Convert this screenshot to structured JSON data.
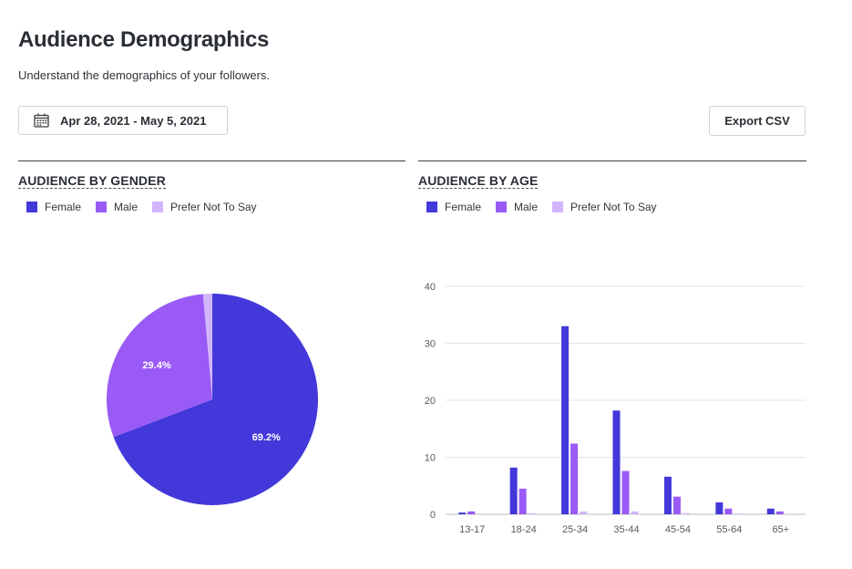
{
  "header": {
    "title": "Audience Demographics",
    "subtitle": "Understand the demographics of your followers."
  },
  "toolbar": {
    "date_range": "Apr 28, 2021 - May 5, 2021",
    "date_icon": "calendar-icon",
    "export_label": "Export CSV"
  },
  "colors": {
    "female": "#4338d9",
    "male": "#9a5af5",
    "prefer_not": "#d2b6fb"
  },
  "gender": {
    "title": "AUDIENCE BY GENDER",
    "legend": [
      "Female",
      "Male",
      "Prefer Not To Say"
    ]
  },
  "age": {
    "title": "AUDIENCE BY AGE",
    "legend": [
      "Female",
      "Male",
      "Prefer Not To Say"
    ]
  },
  "chart_data": [
    {
      "type": "pie",
      "title": "AUDIENCE BY GENDER",
      "labels": [
        "Female",
        "Male",
        "Prefer Not To Say"
      ],
      "values": [
        69.2,
        29.4,
        1.4
      ],
      "data_labels": [
        "69.2%",
        "29.4%",
        ""
      ],
      "legend": "top-left"
    },
    {
      "type": "bar",
      "title": "AUDIENCE BY AGE",
      "categories": [
        "13-17",
        "18-24",
        "25-34",
        "35-44",
        "45-54",
        "55-64",
        "65+"
      ],
      "series": [
        {
          "name": "Female",
          "values": [
            0.3,
            8.2,
            33,
            18.2,
            6.6,
            2.1,
            1.0
          ]
        },
        {
          "name": "Male",
          "values": [
            0.5,
            4.5,
            12.4,
            7.6,
            3.1,
            1.0,
            0.5
          ]
        },
        {
          "name": "Prefer Not To Say",
          "values": [
            0,
            0.2,
            0.5,
            0.5,
            0.2,
            0.1,
            0
          ]
        }
      ],
      "yticks": [
        "0",
        "10",
        "20",
        "30",
        "40"
      ],
      "ylim": [
        0,
        40
      ],
      "grid": true,
      "legend": "top-left"
    }
  ]
}
